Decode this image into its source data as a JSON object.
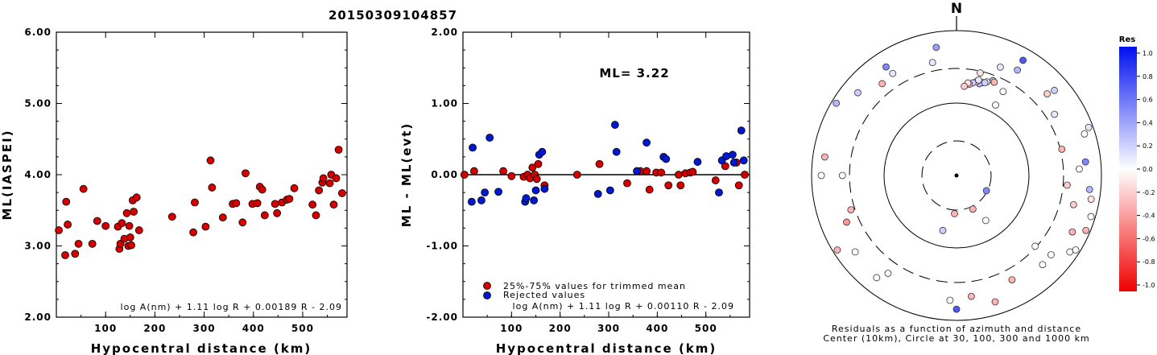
{
  "title": "20150309104857",
  "colors": {
    "red": "#d40000",
    "blue": "#0018d0",
    "axis": "#000000"
  },
  "chart_data": [
    {
      "type": "scatter",
      "title": "",
      "xlabel": "Hypocentral distance (km)",
      "ylabel": "ML(IASPEI)",
      "xlim": [
        0,
        590
      ],
      "ylim": [
        2.0,
        6.0
      ],
      "xticks": [
        "100",
        "200",
        "300",
        "400",
        "500"
      ],
      "yticks": [
        "2.00",
        "3.00",
        "4.00",
        "5.00",
        "6.00"
      ],
      "formula": "log A(nm) + 1.11 log R + 0.00189 R - 2.09",
      "series": [
        {
          "color": "red",
          "points": [
            [
              5,
              3.22
            ],
            [
              18,
              2.87
            ],
            [
              20,
              3.62
            ],
            [
              23,
              3.3
            ],
            [
              38,
              2.89
            ],
            [
              45,
              3.03
            ],
            [
              55,
              3.8
            ],
            [
              73,
              3.03
            ],
            [
              83,
              3.35
            ],
            [
              100,
              3.28
            ],
            [
              125,
              3.27
            ],
            [
              128,
              2.96
            ],
            [
              130,
              3.03
            ],
            [
              133,
              3.32
            ],
            [
              138,
              3.1
            ],
            [
              143,
              3.46
            ],
            [
              146,
              3.0
            ],
            [
              148,
              3.28
            ],
            [
              150,
              3.12
            ],
            [
              152,
              3.01
            ],
            [
              155,
              3.64
            ],
            [
              157,
              3.48
            ],
            [
              163,
              3.68
            ],
            [
              168,
              3.22
            ],
            [
              235,
              3.41
            ],
            [
              278,
              3.19
            ],
            [
              281,
              3.61
            ],
            [
              303,
              3.27
            ],
            [
              313,
              4.2
            ],
            [
              316,
              3.82
            ],
            [
              338,
              3.4
            ],
            [
              358,
              3.59
            ],
            [
              365,
              3.6
            ],
            [
              378,
              3.33
            ],
            [
              384,
              4.02
            ],
            [
              398,
              3.59
            ],
            [
              408,
              3.6
            ],
            [
              413,
              3.83
            ],
            [
              418,
              3.79
            ],
            [
              423,
              3.43
            ],
            [
              444,
              3.59
            ],
            [
              448,
              3.46
            ],
            [
              458,
              3.61
            ],
            [
              468,
              3.65
            ],
            [
              473,
              3.66
            ],
            [
              483,
              3.81
            ],
            [
              520,
              3.58
            ],
            [
              527,
              3.43
            ],
            [
              533,
              3.78
            ],
            [
              540,
              3.89
            ],
            [
              542,
              3.95
            ],
            [
              555,
              3.88
            ],
            [
              558,
              4.0
            ],
            [
              563,
              3.58
            ],
            [
              568,
              3.95
            ],
            [
              573,
              4.35
            ],
            [
              580,
              3.74
            ]
          ]
        }
      ]
    },
    {
      "type": "scatter",
      "title": "",
      "xlabel": "Hypocentral distance (km)",
      "ylabel": "ML - ML(evt)",
      "xlim": [
        0,
        590
      ],
      "ylim": [
        -2.0,
        2.0
      ],
      "xticks": [
        "100",
        "200",
        "300",
        "400",
        "500"
      ],
      "yticks": [
        "-2.00",
        "-1.00",
        "0.00",
        "1.00",
        "2.00"
      ],
      "annotation": "ML= 3.22",
      "legend": [
        "25%-75% values for trimmed mean",
        "Rejected values"
      ],
      "legend_position": "bottom-left",
      "formula": "log A(nm) + 1.11 log R + 0.00110 R - 2.09",
      "series": [
        {
          "name": "25%-75% values for trimmed mean",
          "color": "red",
          "points": [
            [
              3,
              0.0
            ],
            [
              23,
              0.05
            ],
            [
              83,
              0.05
            ],
            [
              100,
              -0.02
            ],
            [
              125,
              -0.03
            ],
            [
              133,
              0.0
            ],
            [
              138,
              -0.05
            ],
            [
              143,
              0.1
            ],
            [
              148,
              0.0
            ],
            [
              152,
              -0.06
            ],
            [
              155,
              0.15
            ],
            [
              168,
              -0.15
            ],
            [
              235,
              0.0
            ],
            [
              281,
              0.15
            ],
            [
              338,
              -0.12
            ],
            [
              365,
              0.05
            ],
            [
              378,
              0.05
            ],
            [
              384,
              -0.21
            ],
            [
              398,
              0.03
            ],
            [
              408,
              0.03
            ],
            [
              423,
              -0.15
            ],
            [
              444,
              0.0
            ],
            [
              448,
              -0.15
            ],
            [
              458,
              0.02
            ],
            [
              468,
              0.03
            ],
            [
              473,
              0.04
            ],
            [
              520,
              -0.08
            ],
            [
              540,
              0.12
            ],
            [
              563,
              0.17
            ],
            [
              568,
              -0.15
            ],
            [
              580,
              0.0
            ]
          ]
        },
        {
          "name": "Rejected values",
          "color": "blue",
          "points": [
            [
              20,
              0.38
            ],
            [
              18,
              -0.38
            ],
            [
              38,
              -0.36
            ],
            [
              45,
              -0.25
            ],
            [
              55,
              0.52
            ],
            [
              73,
              -0.24
            ],
            [
              128,
              -0.38
            ],
            [
              130,
              -0.33
            ],
            [
              146,
              -0.36
            ],
            [
              150,
              -0.22
            ],
            [
              157,
              0.28
            ],
            [
              163,
              0.32
            ],
            [
              168,
              -0.2
            ],
            [
              278,
              -0.27
            ],
            [
              303,
              -0.22
            ],
            [
              313,
              0.7
            ],
            [
              316,
              0.32
            ],
            [
              358,
              0.05
            ],
            [
              378,
              0.45
            ],
            [
              413,
              0.25
            ],
            [
              418,
              0.22
            ],
            [
              483,
              0.18
            ],
            [
              527,
              -0.25
            ],
            [
              533,
              0.2
            ],
            [
              542,
              0.26
            ],
            [
              555,
              0.28
            ],
            [
              558,
              0.17
            ],
            [
              573,
              0.62
            ],
            [
              578,
              0.2
            ]
          ]
        }
      ]
    },
    {
      "type": "scatter",
      "title": "N",
      "caption": [
        "Residuals as a function of azimuth and distance",
        "Center (10km), Circle at 30, 100, 300 and 1000 km"
      ],
      "colorbar_title": "Res",
      "colorbar_ticks": [
        "1.0",
        "0.8",
        "0.6",
        "0.4",
        "0.2",
        "0.0",
        "-0.2",
        "-0.4",
        "-0.6",
        "-0.8",
        "-1.0"
      ],
      "polar_points_azimuth_deg_distance_km_residual": [
        [
          22,
          460,
          0.1
        ],
        [
          30,
          540,
          0.3
        ],
        [
          328,
          515,
          0.1
        ],
        [
          13,
          315,
          -0.1
        ],
        [
          21,
          280,
          0.3
        ],
        [
          18,
          252,
          -0.1
        ],
        [
          16,
          238,
          0.1
        ],
        [
          14,
          222,
          0.3
        ],
        [
          12,
          232,
          -0.2
        ],
        [
          10,
          218,
          0.2
        ],
        [
          8,
          205,
          -0.3
        ],
        [
          7,
          212,
          -0.1
        ],
        [
          5,
          188,
          -0.2
        ],
        [
          13,
          248,
          0.1
        ],
        [
          17,
          240,
          0.2
        ],
        [
          22,
          270,
          -0.3
        ],
        [
          29,
          232,
          0.0
        ],
        [
          29,
          140,
          0.0
        ],
        [
          310,
          680,
          0.2
        ],
        [
          327,
          695,
          0.5
        ],
        [
          321,
          480,
          -0.3
        ],
        [
          348,
          440,
          0.1
        ],
        [
          351,
          700,
          0.4
        ],
        [
          30,
          780,
          0.7
        ],
        [
          48,
          545,
          -0.2
        ],
        [
          49,
          700,
          0.2
        ],
        [
          58,
          440,
          0.1
        ],
        [
          70,
          1000,
          0.1
        ],
        [
          72,
          820,
          0.0
        ],
        [
          76,
          350,
          -0.3
        ],
        [
          84,
          700,
          0.5
        ],
        [
          87,
          560,
          0.0
        ],
        [
          95,
          380,
          -0.2
        ],
        [
          96,
          800,
          0.3
        ],
        [
          100,
          880,
          -0.1
        ],
        [
          104,
          520,
          -0.2
        ],
        [
          107,
          1000,
          0.0
        ],
        [
          113,
          1000,
          -0.3
        ],
        [
          116,
          680,
          -0.3
        ],
        [
          122,
          1000,
          0.0
        ],
        [
          124,
          880,
          0.0
        ],
        [
          132,
          320,
          0.0
        ],
        [
          130,
          570,
          0.0
        ],
        [
          136,
          580,
          0.0
        ],
        [
          152,
          480,
          -0.3
        ],
        [
          154,
          34,
          -0.3
        ],
        [
          147,
          58,
          0.0
        ],
        [
          117,
          30,
          0.5
        ],
        [
          163,
          760,
          -0.3
        ],
        [
          173,
          540,
          -0.3
        ],
        [
          180,
          800,
          0.7
        ],
        [
          183,
          600,
          0.0
        ],
        [
          183,
          35,
          -0.3
        ],
        [
          194,
          64,
          0.2
        ],
        [
          218,
          700,
          0.0
        ],
        [
          215,
          500,
          0.0
        ],
        [
          233,
          640,
          0.0
        ],
        [
          238,
          1000,
          -0.3
        ],
        [
          247,
          500,
          -0.4
        ],
        [
          252,
          380,
          -0.3
        ],
        [
          270,
          840,
          0.0
        ],
        [
          270,
          420,
          0.0
        ],
        [
          278,
          780,
          -0.3
        ],
        [
          301,
          990,
          0.3
        ]
      ]
    }
  ]
}
